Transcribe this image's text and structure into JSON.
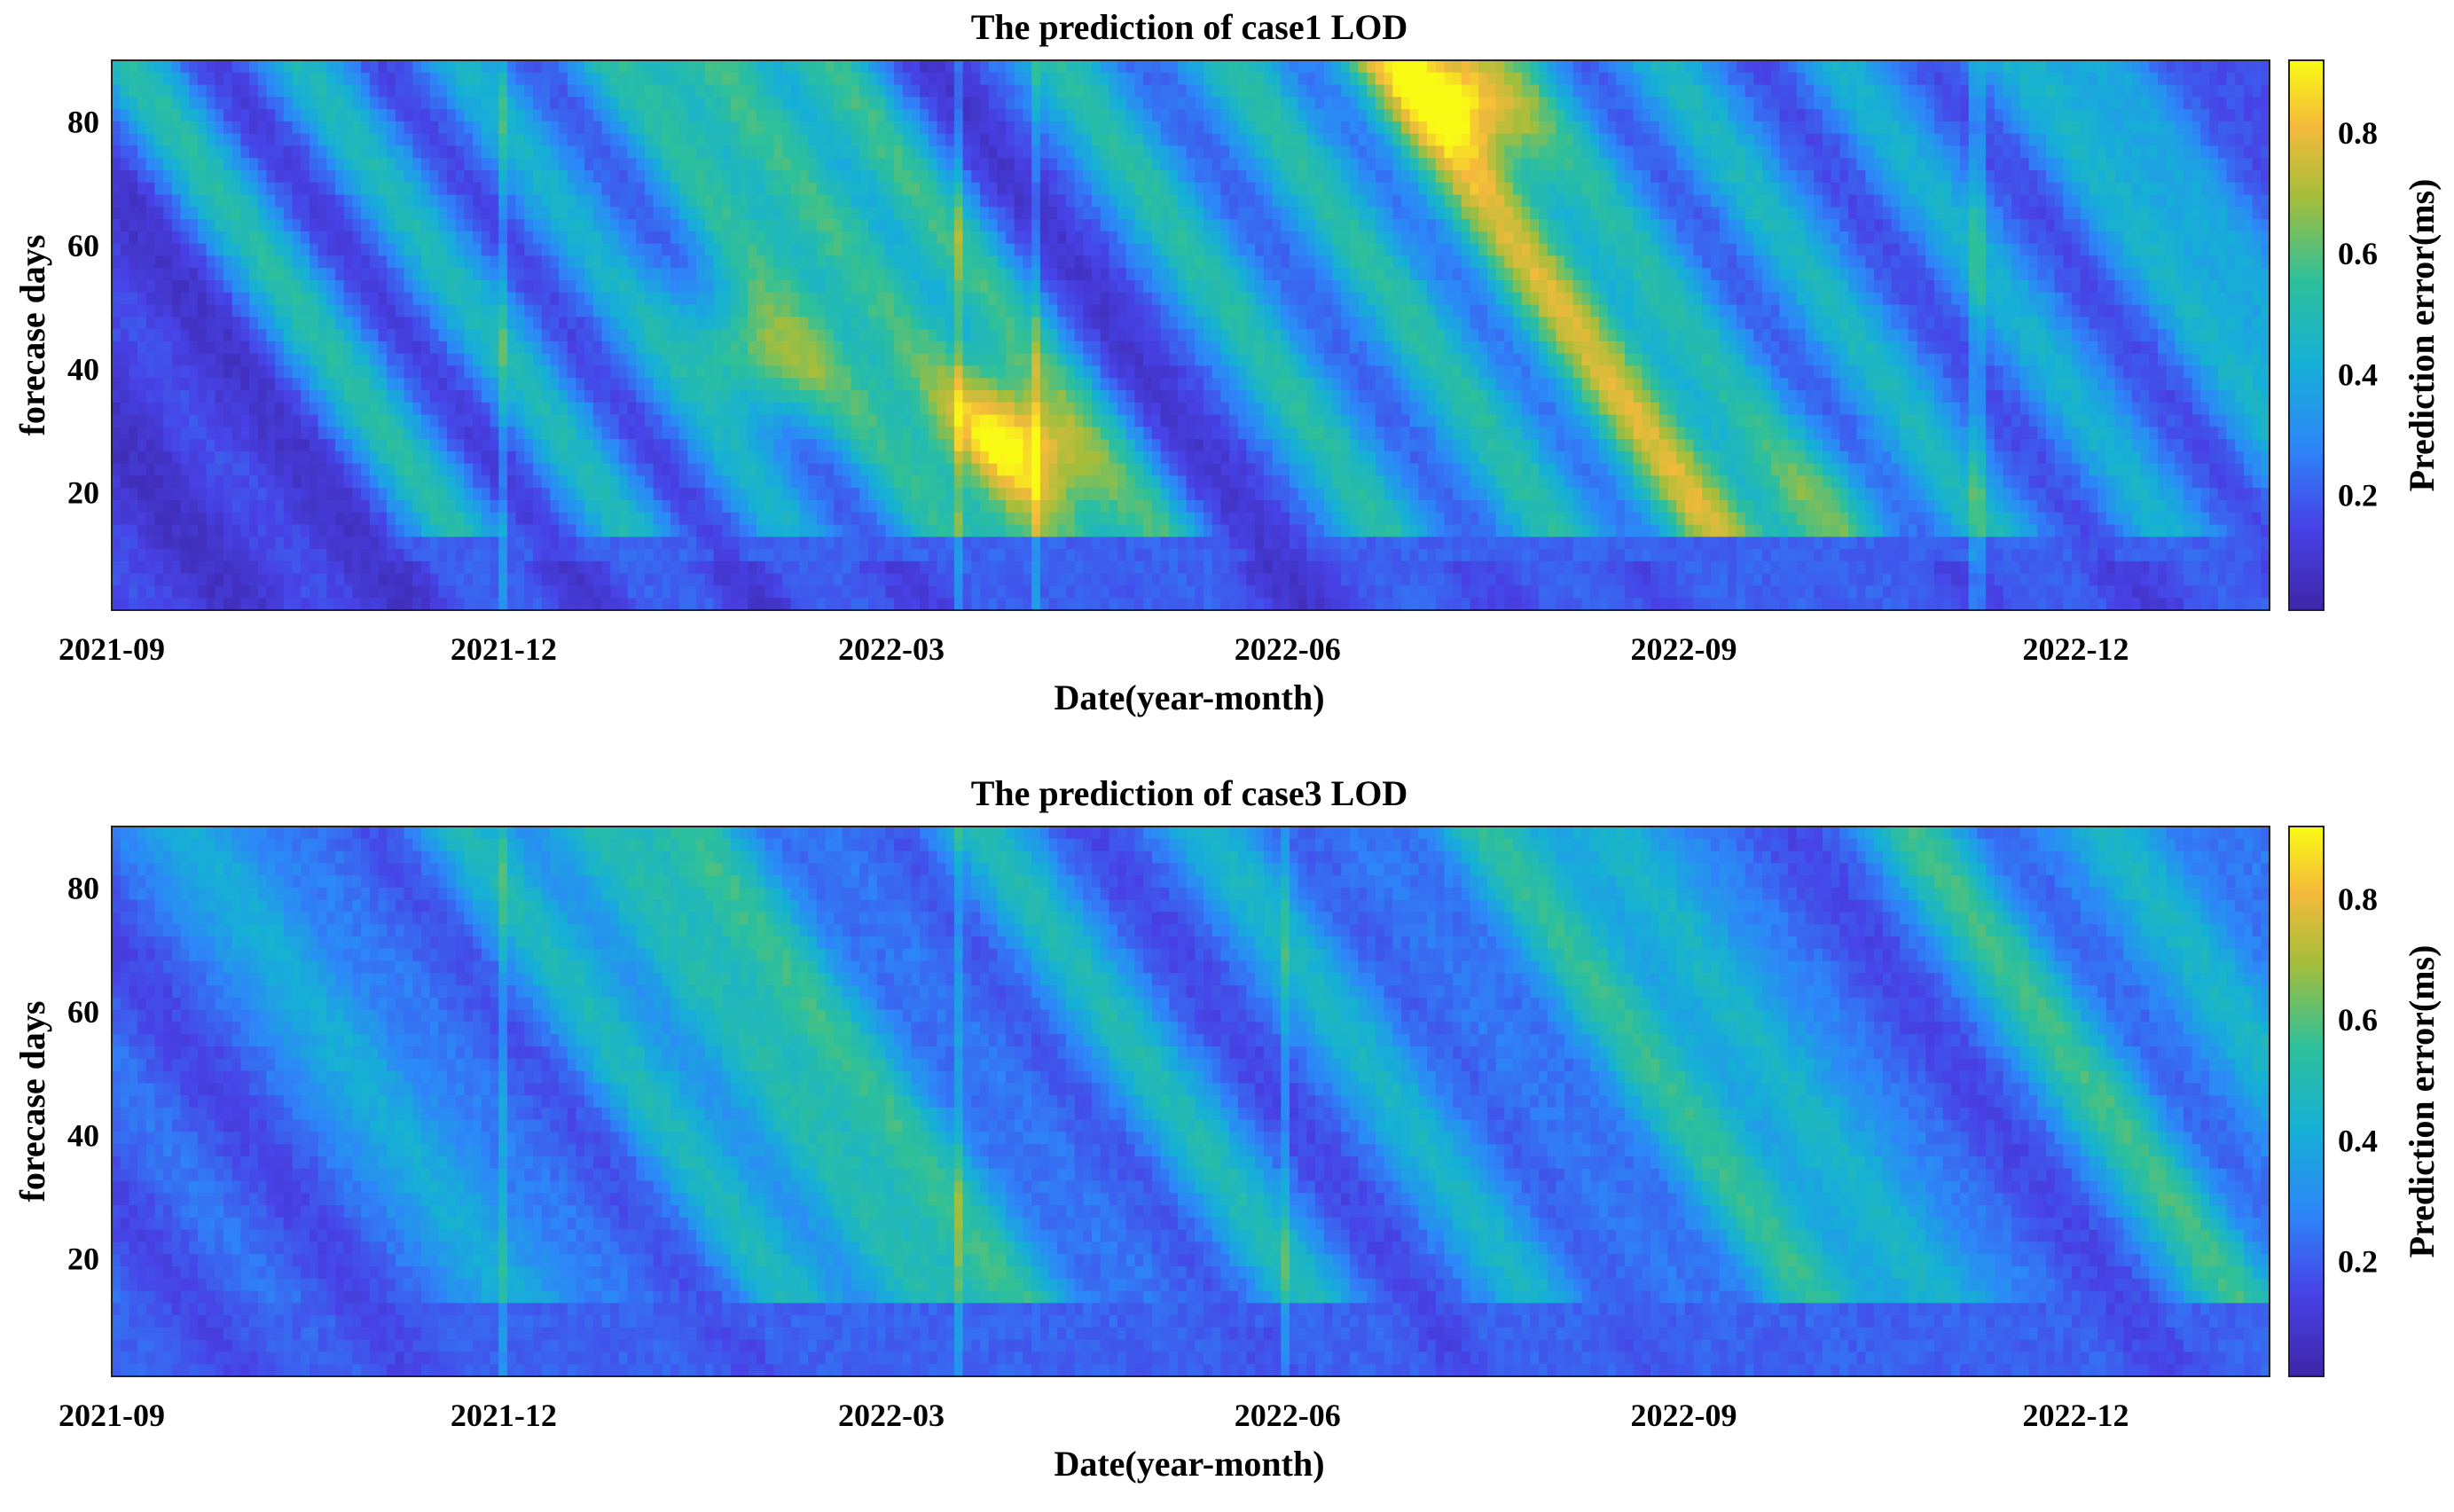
{
  "chart_data": [
    {
      "type": "heatmap",
      "title": "The prediction of case1 LOD",
      "xlabel": "Date(year-month)",
      "ylabel": "forecase days",
      "colorbar_label": "Prediction error(ms)",
      "x_ticks": [
        "2021-09",
        "2021-12",
        "2022-03",
        "2022-06",
        "2022-09",
        "2022-12"
      ],
      "y_ticks": [
        20,
        40,
        60,
        80
      ],
      "colorbar_ticks": [
        0.2,
        0.4,
        0.6,
        0.8
      ],
      "xlim": [
        "2021-09-01",
        "2023-01-15"
      ],
      "ylim": [
        1,
        90
      ],
      "clim": [
        0.01,
        0.92
      ],
      "colormap": "parula",
      "features": {
        "background_level": 0.12,
        "diagonal_streaks": [
          {
            "start": "2021-09-05",
            "level": 0.45
          },
          {
            "start": "2021-10-15",
            "level": 0.4
          },
          {
            "start": "2021-11-20",
            "level": 0.35
          },
          {
            "start": "2021-12-25",
            "level": 0.5
          },
          {
            "start": "2022-01-20",
            "level": 0.6
          },
          {
            "start": "2022-02-15",
            "level": 0.5
          },
          {
            "start": "2022-04-10",
            "level": 0.55
          },
          {
            "start": "2022-05-20",
            "level": 0.55
          },
          {
            "start": "2022-06-25",
            "level": 0.8
          },
          {
            "start": "2022-07-20",
            "level": 0.45
          },
          {
            "start": "2022-08-25",
            "level": 0.45
          },
          {
            "start": "2022-10-05",
            "level": 0.4
          },
          {
            "start": "2022-11-15",
            "level": 0.4
          },
          {
            "start": "2022-12-10",
            "level": 0.35
          }
        ],
        "hotspots": [
          {
            "date": "2022-01-28",
            "forecast_day": 42,
            "level": 0.78
          },
          {
            "date": "2022-03-30",
            "forecast_day": 28,
            "level": 0.85
          },
          {
            "date": "2022-07-12",
            "forecast_day": 85,
            "level": 0.82
          },
          {
            "date": "2022-10-05",
            "forecast_day": 18,
            "level": 0.55
          }
        ],
        "discontinuities": [
          "2021-12-01",
          "2022-03-16",
          "2022-04-04",
          "2022-11-08"
        ]
      }
    },
    {
      "type": "heatmap",
      "title": "The prediction of case3 LOD",
      "xlabel": "Date(year-month)",
      "ylabel": "forecase days",
      "colorbar_label": "Prediction error(ms)",
      "x_ticks": [
        "2021-09",
        "2021-12",
        "2022-03",
        "2022-06",
        "2022-09",
        "2022-12"
      ],
      "y_ticks": [
        20,
        40,
        60,
        80
      ],
      "colorbar_ticks": [
        0.2,
        0.4,
        0.6,
        0.8
      ],
      "xlim": [
        "2021-09-01",
        "2023-01-15"
      ],
      "ylim": [
        1,
        90
      ],
      "clim": [
        0.01,
        0.92
      ],
      "colormap": "parula",
      "features": {
        "background_level": 0.2,
        "diagonal_streaks": [
          {
            "start": "2021-09-20",
            "level": 0.32
          },
          {
            "start": "2021-11-20",
            "level": 0.3
          },
          {
            "start": "2021-12-20",
            "level": 0.4
          },
          {
            "start": "2022-01-15",
            "level": 0.45
          },
          {
            "start": "2022-03-20",
            "level": 0.33
          },
          {
            "start": "2022-05-15",
            "level": 0.3
          },
          {
            "start": "2022-07-15",
            "level": 0.45
          },
          {
            "start": "2022-08-15",
            "level": 0.38
          },
          {
            "start": "2022-10-25",
            "level": 0.45
          },
          {
            "start": "2022-12-10",
            "level": 0.35
          }
        ],
        "hotspots": [],
        "discontinuities": [
          "2021-12-01",
          "2022-03-16",
          "2022-06-01"
        ]
      }
    }
  ]
}
